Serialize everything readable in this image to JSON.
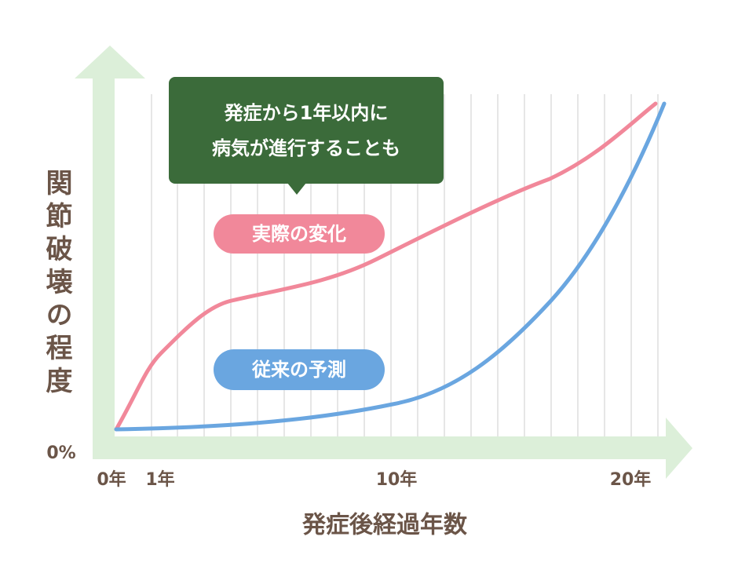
{
  "y_axis": {
    "label": "関節破壊の程度",
    "origin_label": "0%"
  },
  "x_axis": {
    "label": "発症後経過年数",
    "ticks": [
      "0年",
      "1年",
      "10年",
      "20年"
    ]
  },
  "callout": {
    "lines": [
      "発症から1年以内に",
      "病気が進行することも"
    ]
  },
  "curves": [
    {
      "label": "実際の変化"
    },
    {
      "label": "従来の予測"
    }
  ]
}
